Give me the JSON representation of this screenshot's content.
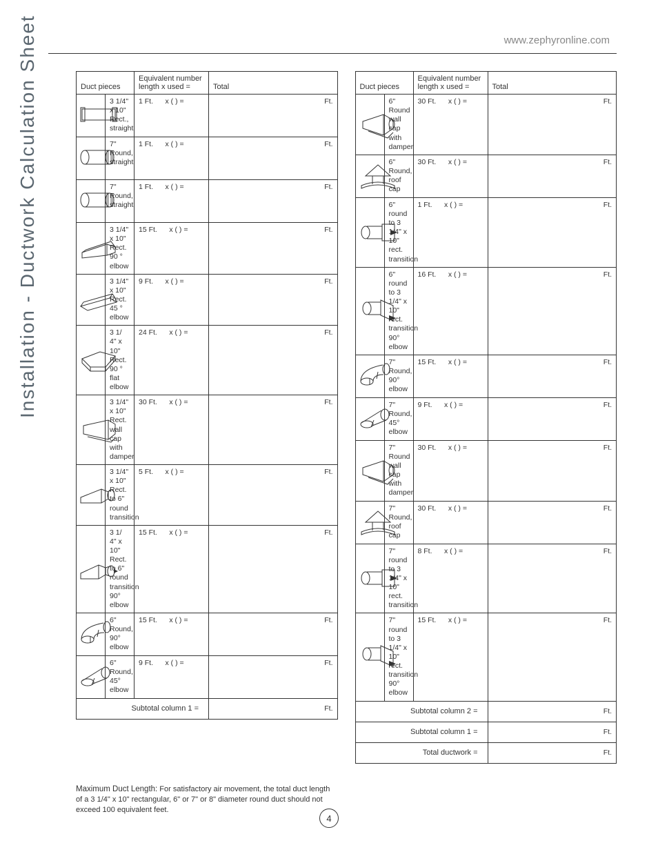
{
  "header_url": "www.zephyronline.com",
  "side_title": "Installation - Ductwork Calculation Sheet",
  "headers": {
    "duct_pieces": "Duct pieces",
    "equiv": "Equivalent number\nlength x used     =",
    "total": "Total"
  },
  "equiv_template": "x (      )   =",
  "total_unit": "Ft.",
  "col1": [
    {
      "icon": "rect-straight",
      "desc": "3 1/4\" x 10\" Rect., straight",
      "equiv": "1 Ft."
    },
    {
      "icon": "round-straight",
      "desc": "7\" Round, straight",
      "equiv": "1 Ft."
    },
    {
      "icon": "round-straight",
      "desc": "7\" Round, straight",
      "equiv": "1 Ft."
    },
    {
      "icon": "rect-elbow90",
      "desc": "3 1/4\" x 10\" Rect. 90 ° elbow",
      "equiv": "15 Ft."
    },
    {
      "icon": "rect-elbow45",
      "desc": "3 1/4\" x 10\" Rect. 45 ° elbow",
      "equiv": "9 Ft."
    },
    {
      "icon": "rect-flat90",
      "desc": "3 1/ 4\" x 10\" Rect. 90 ° flat elbow",
      "equiv": "24 Ft."
    },
    {
      "icon": "rect-wallcap",
      "desc": "3 1/4\" x 10\" Rect. wall cap with damper",
      "equiv": "30 Ft."
    },
    {
      "icon": "rect-to-round",
      "desc": "3 1/4\" x 10\" Rect. to 6\" round transition",
      "equiv": "5 Ft."
    },
    {
      "icon": "rect-to-round90",
      "desc": "3 1/ 4\" x 10\" Rect. to 6\" round transition 90° elbow",
      "equiv": "15 Ft."
    },
    {
      "icon": "round-elbow90",
      "desc": "6\" Round, 90° elbow",
      "equiv": "15 Ft."
    },
    {
      "icon": "round-elbow45",
      "desc": "6\" Round, 45° elbow",
      "equiv": "9 Ft."
    }
  ],
  "col1_subtotal_label": "Subtotal column 1  =",
  "col2": [
    {
      "icon": "round-wallcap",
      "desc": "6\" Round wall cap with damper",
      "equiv": "30 Ft."
    },
    {
      "icon": "roofcap",
      "desc": "6\" Round, roof cap",
      "equiv": "30 Ft."
    },
    {
      "icon": "round-to-rect",
      "desc": "6\" round to 3 1/4\" x 10\" rect. transition",
      "equiv": "1 Ft."
    },
    {
      "icon": "round-to-rect90",
      "desc": "6\" round to 3 1/4\" x 10\" rect. transition 90° elbow",
      "equiv": "16 Ft."
    },
    {
      "icon": "round-elbow90",
      "desc": "7\" Round, 90° elbow",
      "equiv": "15 Ft."
    },
    {
      "icon": "round-elbow45",
      "desc": "7\" Round, 45° elbow",
      "equiv": "9 Ft."
    },
    {
      "icon": "round-wallcap",
      "desc": "7\" Round wall cap with damper",
      "equiv": "30 Ft."
    },
    {
      "icon": "roofcap",
      "desc": "7\" Round, roof cap",
      "equiv": "30 Ft."
    },
    {
      "icon": "round-to-rect",
      "desc": "7\" round to 3 1/4\" x 10\" rect. transition",
      "equiv": "8 Ft."
    },
    {
      "icon": "round-to-rect90",
      "desc": "7\" round to 3 1/4\" x 10\" rect. transition 90° elbow",
      "equiv": "15 Ft."
    }
  ],
  "col2_subtotal2_label": "Subtotal column 2  =",
  "col2_subtotal1_label": "Subtotal column 1  =",
  "col2_total_label": "Total ductwork      =",
  "footnote_bold": "Maximum Duct Length:",
  "footnote_text": " For satisfactory air movement, the total duct length of a 3 1/4\" x 10\" rectangular, 6\" or 7\" or 8\" diameter round duct should not exceed 100 equivalent feet.",
  "page_number": "4"
}
